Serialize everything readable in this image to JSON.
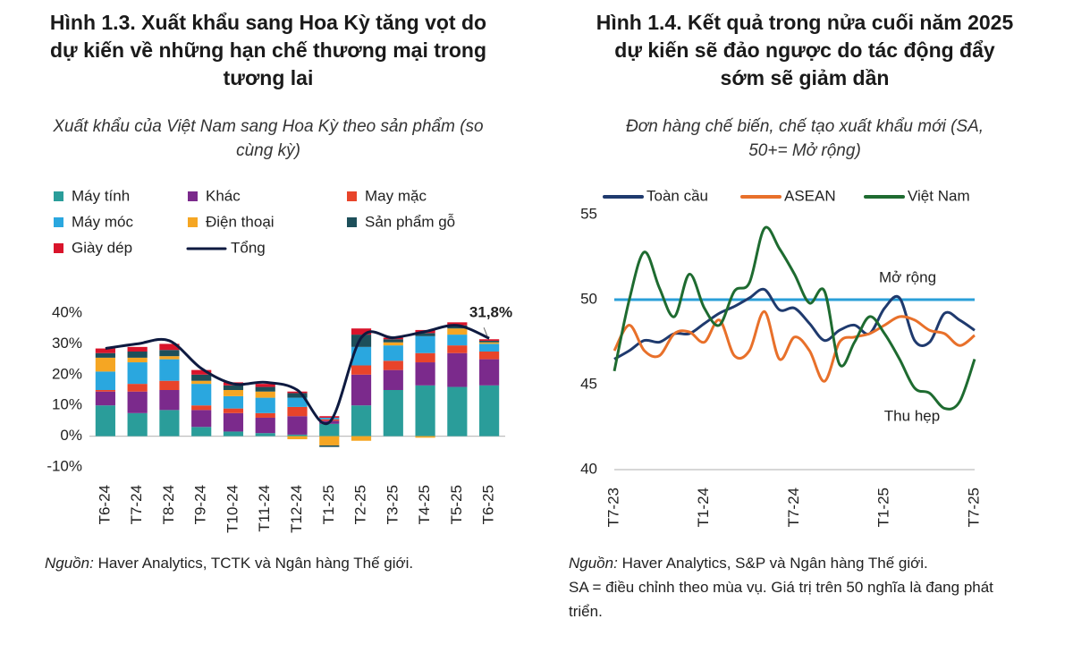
{
  "chart_data": [
    {
      "type": "bar",
      "stacked": true,
      "title": "Hình 1.3. Xuất khẩu sang Hoa Kỳ tăng vọt do dự kiến về những hạn chế thương mại trong tương lai",
      "subtitle": "Xuất khẩu của Việt Nam sang Hoa Kỳ theo sản phẩm (so cùng kỳ)",
      "source_label": "Nguồn:",
      "source": "Haver Analytics, TCTK và Ngân hàng Thế giới.",
      "categories": [
        "T6-24",
        "T7-24",
        "T8-24",
        "T9-24",
        "T10-24",
        "T11-24",
        "T12-24",
        "T1-25",
        "T2-25",
        "T3-25",
        "T4-25",
        "T5-25",
        "T6-25"
      ],
      "series": [
        {
          "name": "Máy tính",
          "color": "#2a9d9a",
          "values": [
            10,
            7.5,
            8.5,
            3,
            1.5,
            1,
            0.5,
            4,
            10,
            15,
            16.5,
            16,
            16.5
          ]
        },
        {
          "name": "Khác",
          "color": "#7b2a8c",
          "values": [
            4.5,
            7,
            6.5,
            5.5,
            6,
            5,
            6,
            1,
            10,
            6.5,
            7.5,
            11,
            8.5
          ]
        },
        {
          "name": "May mặc",
          "color": "#e8442a",
          "values": [
            0.5,
            2.5,
            3,
            1.5,
            1.5,
            1.5,
            3,
            0.5,
            3,
            3,
            3,
            2.5,
            2.5
          ]
        },
        {
          "name": "Máy móc",
          "color": "#2aa7df",
          "values": [
            6,
            7,
            7,
            7,
            4,
            5,
            3,
            0.5,
            6,
            5,
            5.5,
            3.5,
            2.5
          ]
        },
        {
          "name": "Điện thoại",
          "color": "#f5a623",
          "values": [
            4.5,
            1.5,
            1,
            1,
            2,
            2,
            -1,
            -3,
            -1.5,
            1,
            -0.5,
            2,
            0.5
          ]
        },
        {
          "name": "Sản phẩm gỗ",
          "color": "#1d4f5a",
          "values": [
            1.5,
            2,
            2,
            2,
            1.5,
            1.5,
            1.5,
            -0.5,
            4,
            1,
            1,
            1,
            0.5
          ]
        },
        {
          "name": "Giày dép",
          "color": "#d9142b",
          "values": [
            1.5,
            1.5,
            2,
            1.5,
            1,
            1,
            0.5,
            0.5,
            2,
            0.5,
            1,
            1,
            0.5
          ]
        },
        {
          "name": "Tổng",
          "type": "line",
          "color": "#0e1a40",
          "values": [
            28.5,
            30,
            31,
            22,
            17,
            17.5,
            15,
            4.5,
            32,
            32,
            34,
            36,
            31.8
          ],
          "value_labels": [
            null,
            null,
            null,
            null,
            null,
            null,
            null,
            null,
            null,
            null,
            null,
            null,
            "31,8%"
          ]
        }
      ],
      "ylim": [
        -10,
        40
      ],
      "yticks": [
        {
          "value": -10,
          "label": "-10%"
        },
        {
          "value": 0,
          "label": "0%"
        },
        {
          "value": 10,
          "label": "10%"
        },
        {
          "value": 20,
          "label": "20%"
        },
        {
          "value": 30,
          "label": "30%"
        },
        {
          "value": 40,
          "label": "40%"
        }
      ],
      "grid": false
    },
    {
      "type": "line",
      "title": "Hình 1.4. Kết quả trong nửa cuối năm 2025 dự kiến sẽ đảo ngược do tác động đẩy sớm sẽ giảm dần",
      "subtitle": "Đơn hàng chế biến, chế tạo xuất khẩu mới (SA, 50+= Mở rộng)",
      "source_label": "Nguồn:",
      "source": "Haver Analytics, S&P và Ngân hàng Thế giới.",
      "note": "SA = điều chỉnh theo mùa vụ. Giá trị trên 50 nghĩa là đang phát triển.",
      "categories": [
        "T7-23",
        null,
        null,
        null,
        null,
        null,
        "T1-24",
        null,
        null,
        null,
        null,
        null,
        "T7-24",
        null,
        null,
        null,
        null,
        null,
        "T1-25",
        null,
        null,
        null,
        null,
        null,
        "T7-25"
      ],
      "series": [
        {
          "name": "Toàn cầu",
          "color": "#1f3a6e",
          "values": [
            46.5,
            47,
            47.6,
            47.5,
            48,
            48,
            48.6,
            49.2,
            49.6,
            50.1,
            50.6,
            49.4,
            49.5,
            48.6,
            47.6,
            48.2,
            48.5,
            48,
            49.5,
            50.1,
            47.6,
            47.5,
            49.2,
            48.8,
            48.2
          ]
        },
        {
          "name": "ASEAN",
          "color": "#e8702a",
          "values": [
            47,
            48.5,
            47,
            46.7,
            48,
            48.1,
            47.5,
            48.8,
            46.7,
            47,
            49.3,
            46.5,
            47.8,
            47,
            45.2,
            47.5,
            47.8,
            48,
            48.5,
            49,
            48.8,
            48.2,
            48,
            47.3,
            47.9
          ]
        },
        {
          "name": "Việt Nam",
          "color": "#1e6b30",
          "values": [
            45.8,
            50,
            52.8,
            50.7,
            49,
            51.5,
            49.5,
            48.5,
            50.5,
            51,
            54.2,
            53,
            51.5,
            49.8,
            50.5,
            46.2,
            47.5,
            49,
            48,
            46.5,
            44.8,
            44.5,
            43.6,
            44,
            46.5
          ]
        }
      ],
      "threshold": 50,
      "threshold_color": "#2a9fd8",
      "annotations": [
        "Mở rộng",
        "Thu hẹp"
      ],
      "ylim": [
        40,
        55
      ],
      "yticks": [
        40,
        45,
        50,
        55
      ],
      "grid": false
    }
  ]
}
